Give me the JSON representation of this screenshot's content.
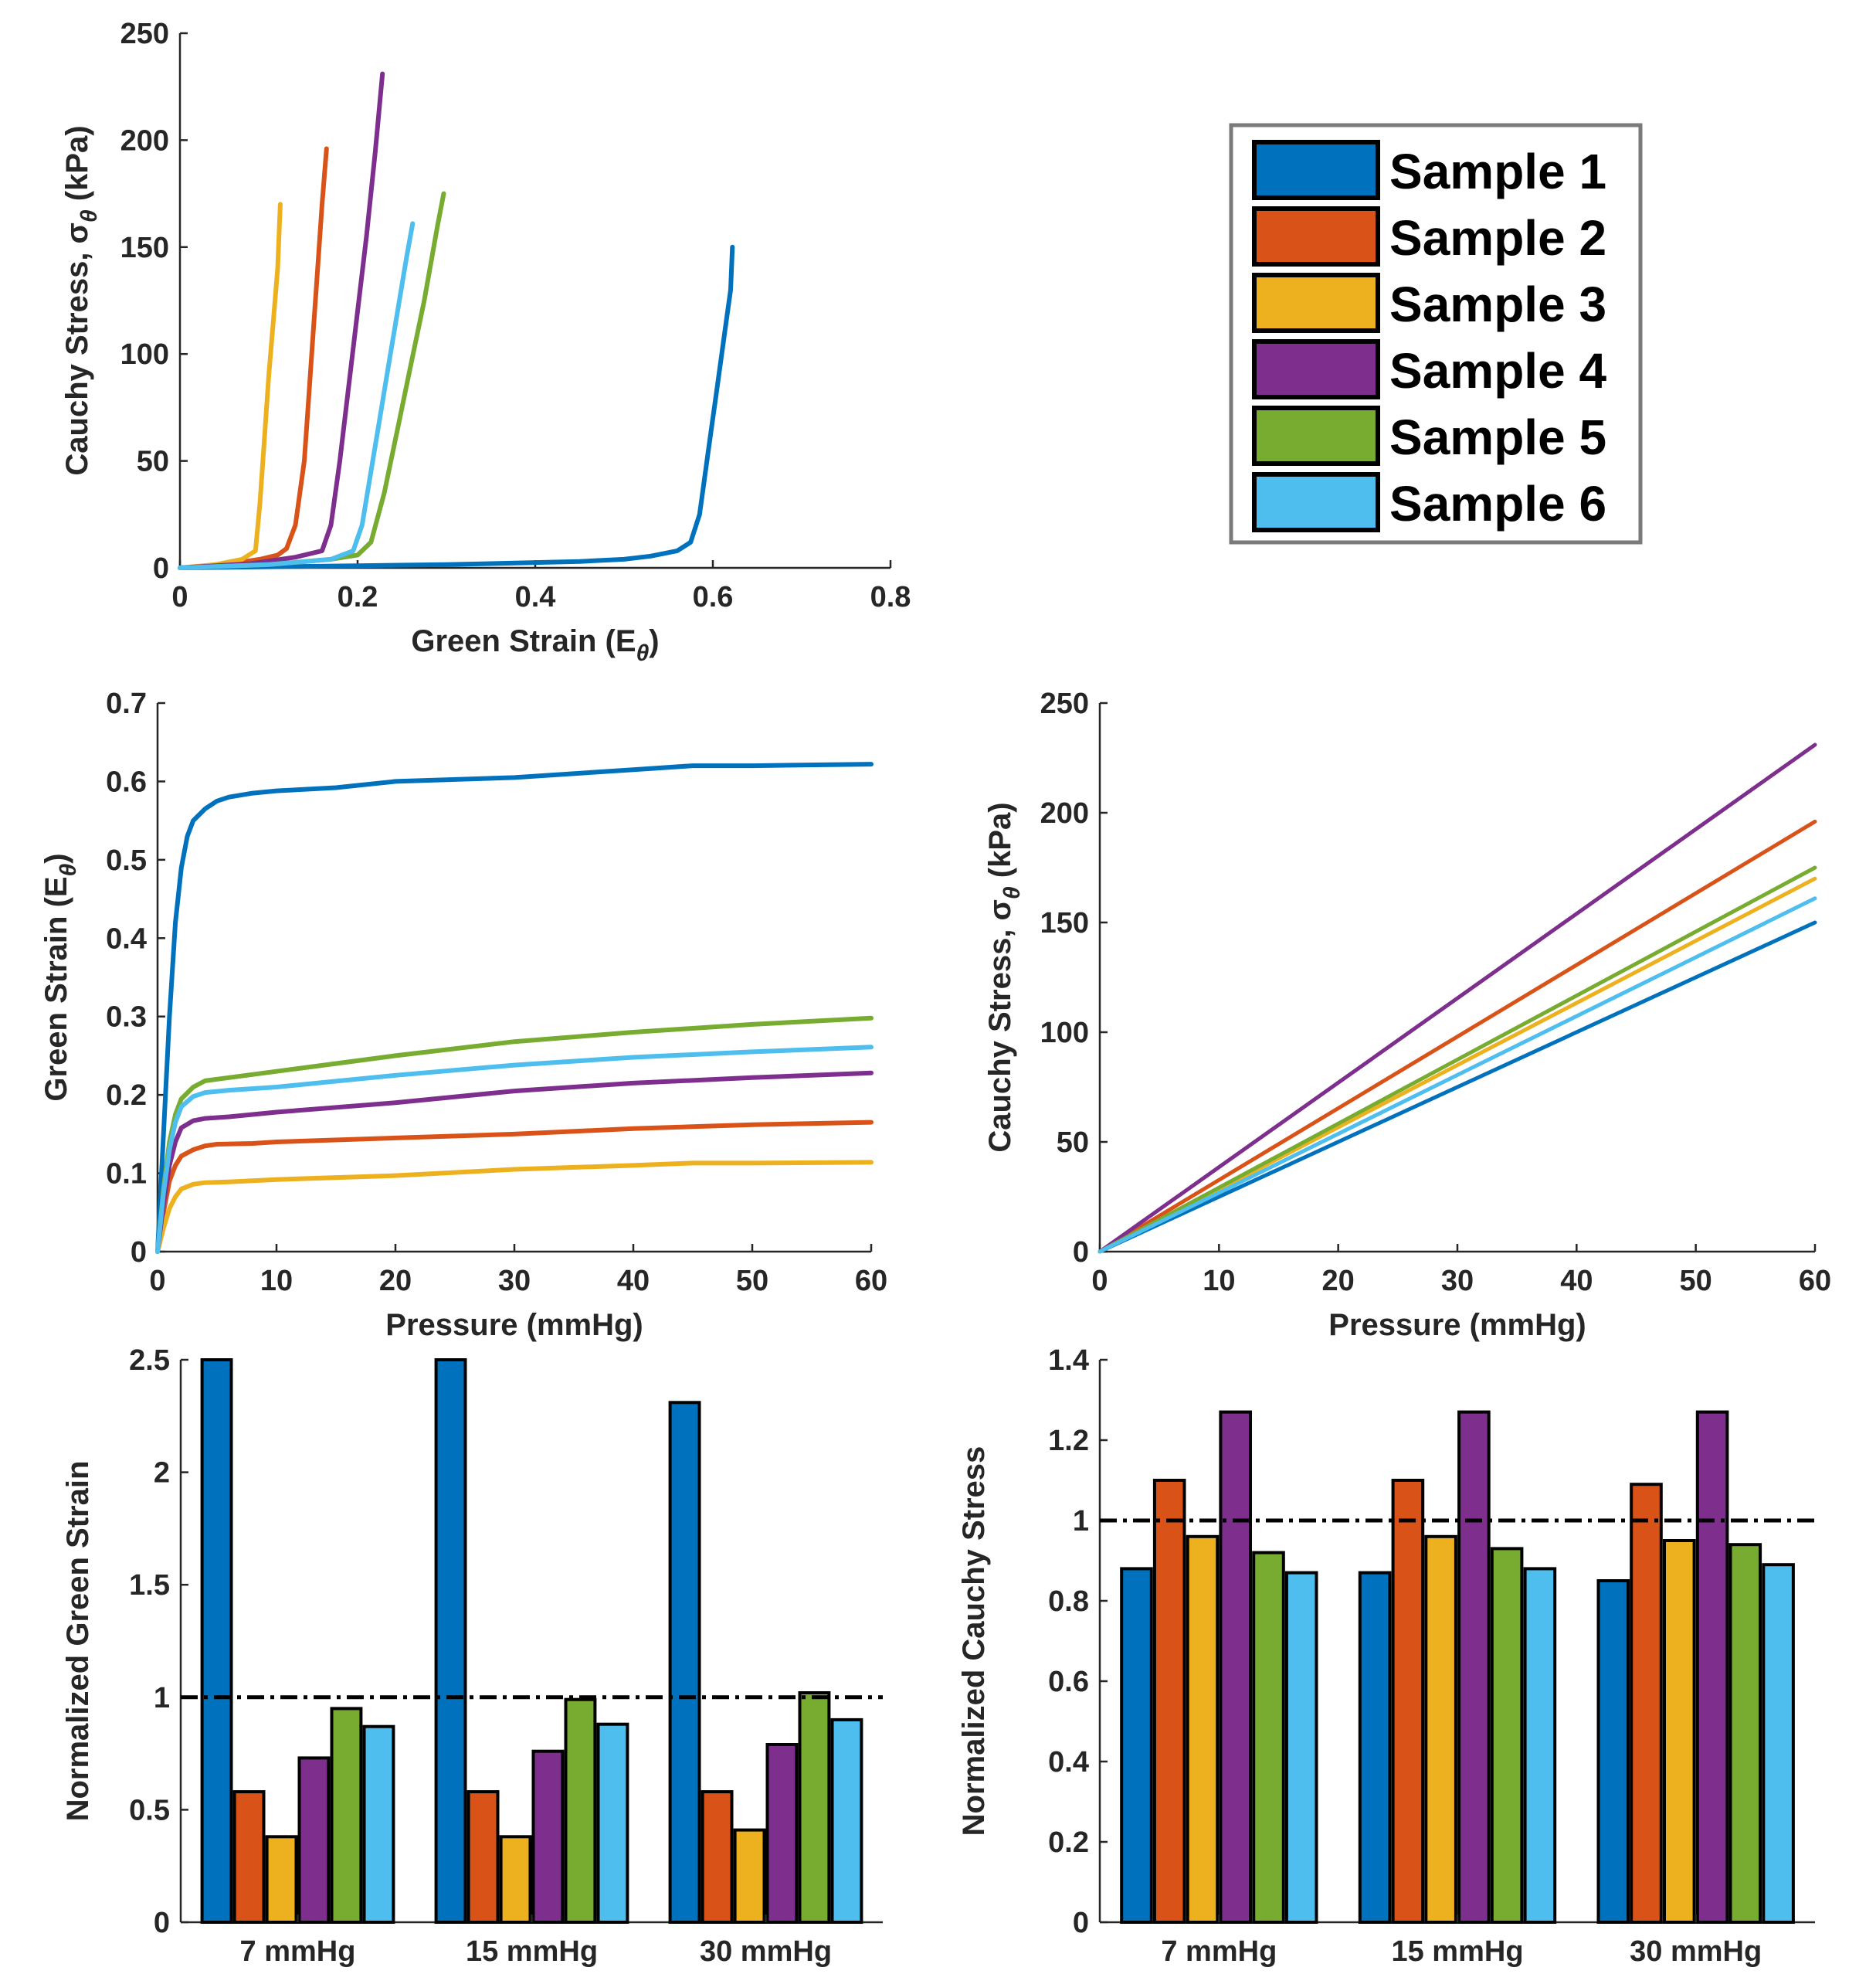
{
  "colors": {
    "Sample 1": "#0072BD",
    "Sample 2": "#D95319",
    "Sample 3": "#EDB120",
    "Sample 4": "#7E2F8E",
    "Sample 5": "#77AC30",
    "Sample 6": "#4DBEEE",
    "reference_line": "#000000"
  },
  "legend": {
    "entries": [
      "Sample 1",
      "Sample 2",
      "Sample 3",
      "Sample 4",
      "Sample 5",
      "Sample 6"
    ]
  },
  "chart_data": [
    {
      "id": "stress-vs-strain",
      "type": "line",
      "xlabel": "Green Strain (E",
      "xlabel_sub": "θ",
      "xlabel_tail": ")",
      "ylabel": "Cauchy Stress, σ",
      "ylabel_sub": "θ",
      "ylabel_tail": " (kPa)",
      "xlim": [
        0,
        0.8
      ],
      "ylim": [
        0,
        250
      ],
      "xticks": [
        0,
        0.2,
        0.4,
        0.6,
        0.8
      ],
      "xtick_labels": [
        "0",
        "0.2",
        "0.4",
        "0.6",
        "0.8"
      ],
      "yticks": [
        0,
        50,
        100,
        150,
        200,
        250
      ],
      "ytick_labels": [
        "0",
        "50",
        "100",
        "150",
        "200",
        "250"
      ],
      "series": [
        {
          "name": "Sample 1",
          "x": [
            0,
            0.1,
            0.2,
            0.3,
            0.4,
            0.45,
            0.5,
            0.53,
            0.56,
            0.575,
            0.585,
            0.59,
            0.595,
            0.6,
            0.605,
            0.61,
            0.615,
            0.62,
            0.622
          ],
          "y": [
            0,
            0.5,
            1,
            1.5,
            2.5,
            3,
            4,
            5.5,
            8,
            12,
            25,
            40,
            55,
            70,
            85,
            100,
            115,
            130,
            150
          ]
        },
        {
          "name": "Sample 2",
          "x": [
            0,
            0.05,
            0.09,
            0.11,
            0.12,
            0.13,
            0.14,
            0.145,
            0.15,
            0.155,
            0.16,
            0.165
          ],
          "y": [
            0,
            1.5,
            4,
            6,
            9,
            20,
            50,
            80,
            110,
            140,
            170,
            196
          ]
        },
        {
          "name": "Sample 3",
          "x": [
            0,
            0.04,
            0.07,
            0.085,
            0.09,
            0.095,
            0.1,
            0.105,
            0.11,
            0.113
          ],
          "y": [
            0,
            1.5,
            4,
            8,
            30,
            60,
            90,
            115,
            140,
            170
          ]
        },
        {
          "name": "Sample 4",
          "x": [
            0,
            0.08,
            0.13,
            0.16,
            0.17,
            0.18,
            0.19,
            0.2,
            0.21,
            0.22,
            0.228
          ],
          "y": [
            0,
            2,
            5,
            8,
            20,
            50,
            85,
            120,
            155,
            195,
            231
          ]
        },
        {
          "name": "Sample 5",
          "x": [
            0,
            0.1,
            0.17,
            0.2,
            0.215,
            0.23,
            0.245,
            0.26,
            0.275,
            0.29,
            0.297
          ],
          "y": [
            0,
            1.5,
            4,
            6,
            12,
            35,
            65,
            95,
            125,
            160,
            175
          ]
        },
        {
          "name": "Sample 6",
          "x": [
            0,
            0.1,
            0.17,
            0.195,
            0.205,
            0.215,
            0.225,
            0.235,
            0.245,
            0.255,
            0.262
          ],
          "y": [
            0,
            1.5,
            4,
            8,
            20,
            45,
            70,
            95,
            120,
            145,
            161
          ]
        }
      ]
    },
    {
      "id": "strain-vs-pressure",
      "type": "line",
      "xlabel": "Pressure (mmHg)",
      "ylabel": "Green Strain (E",
      "ylabel_sub": "θ",
      "ylabel_tail": ")",
      "xlim": [
        0,
        60
      ],
      "ylim": [
        0,
        0.7
      ],
      "xticks": [
        0,
        10,
        20,
        30,
        40,
        50,
        60
      ],
      "xtick_labels": [
        "0",
        "10",
        "20",
        "30",
        "40",
        "50",
        "60"
      ],
      "yticks": [
        0,
        0.1,
        0.2,
        0.3,
        0.4,
        0.5,
        0.6,
        0.7
      ],
      "ytick_labels": [
        "0",
        "0.1",
        "0.2",
        "0.3",
        "0.4",
        "0.5",
        "0.6",
        "0.7"
      ],
      "series": [
        {
          "name": "Sample 1",
          "x": [
            0,
            0.5,
            1,
            1.5,
            2,
            2.5,
            3,
            4,
            5,
            6,
            8,
            10,
            15,
            20,
            30,
            40,
            45,
            50,
            60
          ],
          "y": [
            0,
            0.15,
            0.3,
            0.42,
            0.49,
            0.53,
            0.55,
            0.565,
            0.575,
            0.58,
            0.585,
            0.588,
            0.592,
            0.6,
            0.605,
            0.615,
            0.62,
            0.62,
            0.622
          ]
        },
        {
          "name": "Sample 2",
          "x": [
            0,
            0.5,
            1,
            1.5,
            2,
            3,
            4,
            5,
            8,
            10,
            20,
            30,
            40,
            50,
            60
          ],
          "y": [
            0,
            0.05,
            0.09,
            0.11,
            0.122,
            0.13,
            0.135,
            0.137,
            0.138,
            0.14,
            0.145,
            0.15,
            0.157,
            0.162,
            0.165
          ]
        },
        {
          "name": "Sample 3",
          "x": [
            0,
            0.5,
            1,
            1.5,
            2,
            3,
            4,
            6,
            10,
            20,
            30,
            40,
            45,
            50,
            60
          ],
          "y": [
            0,
            0.03,
            0.055,
            0.07,
            0.08,
            0.086,
            0.088,
            0.089,
            0.092,
            0.097,
            0.105,
            0.11,
            0.113,
            0.113,
            0.114
          ]
        },
        {
          "name": "Sample 4",
          "x": [
            0,
            0.5,
            1,
            1.5,
            2,
            3,
            4,
            6,
            10,
            20,
            30,
            40,
            50,
            60
          ],
          "y": [
            0,
            0.06,
            0.11,
            0.14,
            0.158,
            0.167,
            0.17,
            0.172,
            0.178,
            0.19,
            0.205,
            0.215,
            0.222,
            0.228
          ]
        },
        {
          "name": "Sample 5",
          "x": [
            0,
            0.5,
            1,
            1.5,
            2,
            3,
            4,
            6,
            10,
            20,
            30,
            40,
            50,
            60
          ],
          "y": [
            0,
            0.08,
            0.14,
            0.175,
            0.195,
            0.21,
            0.218,
            0.222,
            0.23,
            0.25,
            0.268,
            0.28,
            0.29,
            0.298
          ]
        },
        {
          "name": "Sample 6",
          "x": [
            0,
            0.5,
            1,
            1.5,
            2,
            3,
            4,
            6,
            10,
            20,
            30,
            40,
            50,
            60
          ],
          "y": [
            0,
            0.075,
            0.13,
            0.165,
            0.185,
            0.198,
            0.203,
            0.206,
            0.21,
            0.225,
            0.238,
            0.248,
            0.255,
            0.261
          ]
        }
      ]
    },
    {
      "id": "stress-vs-pressure",
      "type": "line",
      "xlabel": "Pressure (mmHg)",
      "ylabel": "Cauchy Stress, σ",
      "ylabel_sub": "θ",
      "ylabel_tail": " (kPa)",
      "xlim": [
        0,
        60
      ],
      "ylim": [
        0,
        250
      ],
      "xticks": [
        0,
        10,
        20,
        30,
        40,
        50,
        60
      ],
      "xtick_labels": [
        "0",
        "10",
        "20",
        "30",
        "40",
        "50",
        "60"
      ],
      "yticks": [
        0,
        50,
        100,
        150,
        200,
        250
      ],
      "ytick_labels": [
        "0",
        "50",
        "100",
        "150",
        "200",
        "250"
      ],
      "series": [
        {
          "name": "Sample 1",
          "x": [
            0,
            60
          ],
          "y": [
            0,
            150
          ]
        },
        {
          "name": "Sample 2",
          "x": [
            0,
            60
          ],
          "y": [
            0,
            196
          ]
        },
        {
          "name": "Sample 3",
          "x": [
            0,
            60
          ],
          "y": [
            0,
            170
          ]
        },
        {
          "name": "Sample 4",
          "x": [
            0,
            60
          ],
          "y": [
            0,
            231
          ]
        },
        {
          "name": "Sample 5",
          "x": [
            0,
            60
          ],
          "y": [
            0,
            175
          ]
        },
        {
          "name": "Sample 6",
          "x": [
            0,
            60
          ],
          "y": [
            0,
            161
          ]
        }
      ]
    },
    {
      "id": "normalized-green-strain",
      "type": "bar",
      "ylabel": "Normalized Green Strain",
      "ylim": [
        0,
        2.5
      ],
      "yticks": [
        0,
        0.5,
        1,
        1.5,
        2,
        2.5
      ],
      "ytick_labels": [
        "0",
        "0.5",
        "1",
        "1.5",
        "2",
        "2.5"
      ],
      "categories": [
        "7 mmHg",
        "15 mmHg",
        "30 mmHg"
      ],
      "reference_line": 1,
      "series": [
        {
          "name": "Sample 1",
          "values": [
            2.5,
            2.5,
            2.31
          ]
        },
        {
          "name": "Sample 2",
          "values": [
            0.58,
            0.58,
            0.58
          ]
        },
        {
          "name": "Sample 3",
          "values": [
            0.38,
            0.38,
            0.41
          ]
        },
        {
          "name": "Sample 4",
          "values": [
            0.73,
            0.76,
            0.79
          ]
        },
        {
          "name": "Sample 5",
          "values": [
            0.95,
            0.99,
            1.02
          ]
        },
        {
          "name": "Sample 6",
          "values": [
            0.87,
            0.88,
            0.9
          ]
        }
      ]
    },
    {
      "id": "normalized-cauchy-stress",
      "type": "bar",
      "ylabel": "Normalized Cauchy Stress",
      "ylim": [
        0,
        1.4
      ],
      "yticks": [
        0,
        0.2,
        0.4,
        0.6,
        0.8,
        1,
        1.2,
        1.4
      ],
      "ytick_labels": [
        "0",
        "0.2",
        "0.4",
        "0.6",
        "0.8",
        "1",
        "1.2",
        "1.4"
      ],
      "categories": [
        "7 mmHg",
        "15 mmHg",
        "30 mmHg"
      ],
      "reference_line": 1,
      "series": [
        {
          "name": "Sample 1",
          "values": [
            0.88,
            0.87,
            0.85
          ]
        },
        {
          "name": "Sample 2",
          "values": [
            1.1,
            1.1,
            1.09
          ]
        },
        {
          "name": "Sample 3",
          "values": [
            0.96,
            0.96,
            0.95
          ]
        },
        {
          "name": "Sample 4",
          "values": [
            1.27,
            1.27,
            1.27
          ]
        },
        {
          "name": "Sample 5",
          "values": [
            0.92,
            0.93,
            0.94
          ]
        },
        {
          "name": "Sample 6",
          "values": [
            0.87,
            0.88,
            0.89
          ]
        }
      ]
    }
  ]
}
